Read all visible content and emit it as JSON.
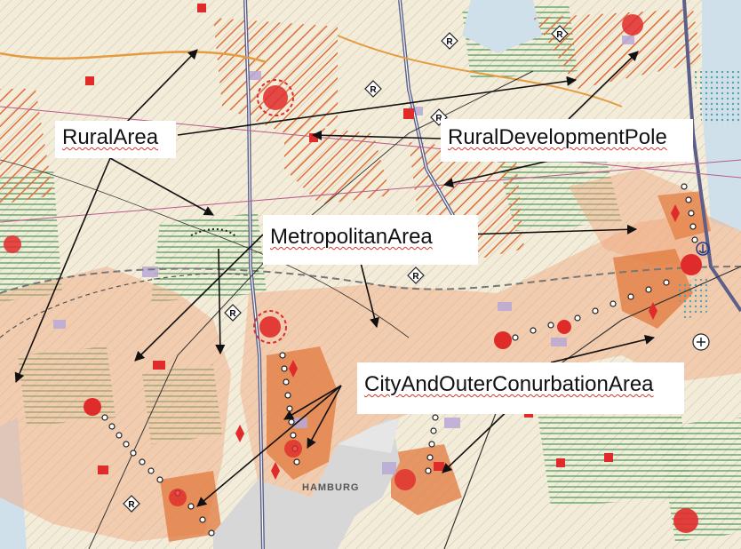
{
  "map": {
    "city_label": "HAMBURG",
    "colors": {
      "background": "#f3ecd9",
      "rural_development_hatch": "#e0703a",
      "green_hatch": "#3f9a55",
      "conurbation_fill": "#f2a77d",
      "city_core": "#e27a3e",
      "motorway": "#5b5f8a",
      "arrow": "#111111",
      "center_marker": "#e02b2b"
    }
  },
  "callouts": {
    "rural_area": "RuralArea",
    "rural_development_pole": "RuralDevelopmentPole",
    "metropolitan_area": "MetropolitanArea",
    "city_and_outer_conurbation_area": "CityAndOuterConurbationArea"
  },
  "icons": {
    "railway_station": "R",
    "harbour": "anchor-icon"
  }
}
